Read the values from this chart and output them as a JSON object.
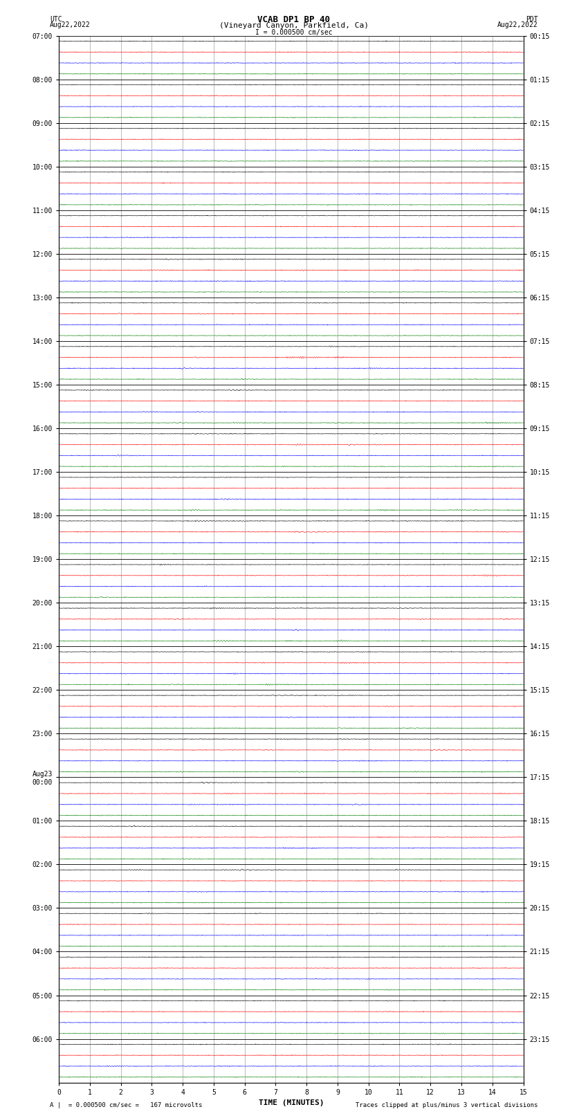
{
  "title_line1": "VCAB DP1 BP 40",
  "title_line2": "(Vineyard Canyon, Parkfield, Ca)",
  "title_line3": "I = 0.000500 cm/sec",
  "left_header1": "UTC",
  "left_header2": "Aug22,2022",
  "right_header1": "PDT",
  "right_header2": "Aug22,2022",
  "xlabel": "TIME (MINUTES)",
  "bottom_left_note": "= 0.000500 cm/sec =   167 microvolts",
  "bottom_right_note": "Traces clipped at plus/minus 3 vertical divisions",
  "utc_labels_at_ticks": [
    "07:00",
    "08:00",
    "09:00",
    "10:00",
    "11:00",
    "12:00",
    "13:00",
    "14:00",
    "15:00",
    "16:00",
    "17:00",
    "18:00",
    "19:00",
    "20:00",
    "21:00",
    "22:00",
    "23:00",
    "Aug23\n00:00",
    "01:00",
    "02:00",
    "03:00",
    "04:00",
    "05:00",
    "06:00"
  ],
  "pdt_labels_at_ticks": [
    "00:15",
    "01:15",
    "02:15",
    "03:15",
    "04:15",
    "05:15",
    "06:15",
    "07:15",
    "08:15",
    "09:15",
    "10:15",
    "11:15",
    "12:15",
    "13:15",
    "14:15",
    "15:15",
    "16:15",
    "17:15",
    "18:15",
    "19:15",
    "20:15",
    "21:15",
    "22:15",
    "23:15"
  ],
  "num_rows": 96,
  "colors": [
    "black",
    "red",
    "blue",
    "green"
  ],
  "xmin": 0,
  "xmax": 15,
  "background_color": "white",
  "grid_color": "#888888",
  "amplitude_scale": 0.35
}
